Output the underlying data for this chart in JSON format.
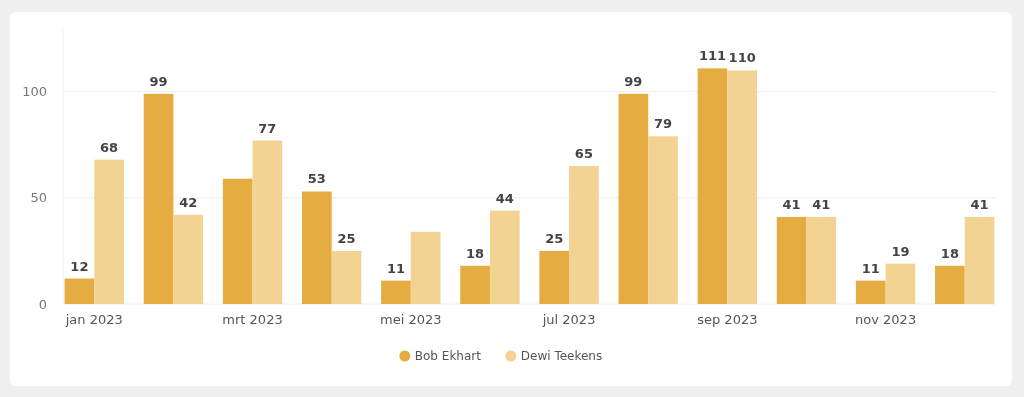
{
  "chart_data": {
    "type": "bar",
    "categories": [
      "jan 2023",
      null,
      "mrt 2023",
      null,
      "mei 2023",
      null,
      "jul 2023",
      null,
      "sep 2023",
      null,
      "nov 2023",
      null
    ],
    "series": [
      {
        "name": "Bob Ekhart",
        "color": "#e5ac42",
        "values": [
          12,
          99,
          59,
          53,
          11,
          18,
          25,
          99,
          111,
          41,
          11,
          18
        ],
        "value_labels": [
          "12",
          "99",
          null,
          "53",
          "11",
          "18",
          "25",
          "99",
          "111",
          "41",
          "11",
          "18"
        ]
      },
      {
        "name": "Dewi Teekens",
        "color": "#f2d393",
        "values": [
          68,
          42,
          77,
          25,
          34,
          44,
          65,
          79,
          110,
          41,
          19,
          41
        ],
        "value_labels": [
          "68",
          "42",
          "77",
          "25",
          null,
          "44",
          "65",
          "79",
          "110",
          "41",
          "19",
          "41"
        ]
      }
    ],
    "ylim": [
      0,
      130
    ],
    "yticks": [
      0,
      50,
      100
    ],
    "grid": "y",
    "legend": "bottom"
  }
}
